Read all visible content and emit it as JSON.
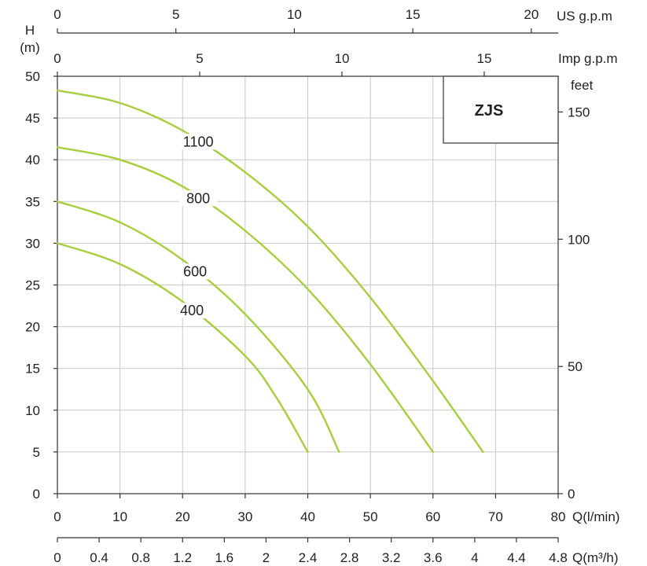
{
  "chart_data": {
    "type": "line",
    "title": "",
    "model_label": "ZJS",
    "xlabel": "Q(l/min)",
    "ylabel": "H",
    "ylabel_unit": "(m)",
    "xlim": [
      0,
      80
    ],
    "ylim": [
      0,
      50
    ],
    "x_ticks": [
      0,
      10,
      20,
      30,
      40,
      50,
      60,
      70,
      80
    ],
    "y_ticks": [
      0,
      5,
      10,
      15,
      20,
      25,
      30,
      35,
      40,
      45,
      50
    ],
    "grid": true,
    "series": [
      {
        "name": "1100",
        "x": [
          0,
          10,
          20,
          30,
          40,
          50,
          60,
          68
        ],
        "y": [
          48.3,
          46.8,
          43.5,
          38.5,
          32.0,
          23.5,
          13.5,
          5
        ]
      },
      {
        "name": "800",
        "x": [
          0,
          10,
          20,
          30,
          40,
          50,
          60
        ],
        "y": [
          41.5,
          40.0,
          36.8,
          31.5,
          24.5,
          15.5,
          5
        ]
      },
      {
        "name": "600",
        "x": [
          0,
          10,
          20,
          30,
          40,
          45
        ],
        "y": [
          35.0,
          32.5,
          28.0,
          21.5,
          12.5,
          5
        ]
      },
      {
        "name": "400",
        "x": [
          0,
          10,
          20,
          30,
          35,
          40
        ],
        "y": [
          30.0,
          27.5,
          23.0,
          16.5,
          11.5,
          5
        ]
      }
    ],
    "series_color": "#a6cf3c",
    "secondary_axes": {
      "us_gpm": {
        "label": "US g.p.m",
        "ticks": [
          0,
          5,
          10,
          15,
          20
        ]
      },
      "imp_gpm": {
        "label": "Imp g.p.m",
        "ticks": [
          0,
          5,
          10,
          15
        ]
      },
      "feet": {
        "label": "feet",
        "ticks": [
          0,
          50,
          100,
          150
        ]
      },
      "m3h": {
        "label": "Q(m³/h)",
        "ticks": [
          "0",
          "0.4",
          "0.8",
          "1.2",
          "1.6",
          "2",
          "2.4",
          "2.8",
          "3.2",
          "3.6",
          "4",
          "4.4",
          "4.8"
        ]
      }
    }
  }
}
